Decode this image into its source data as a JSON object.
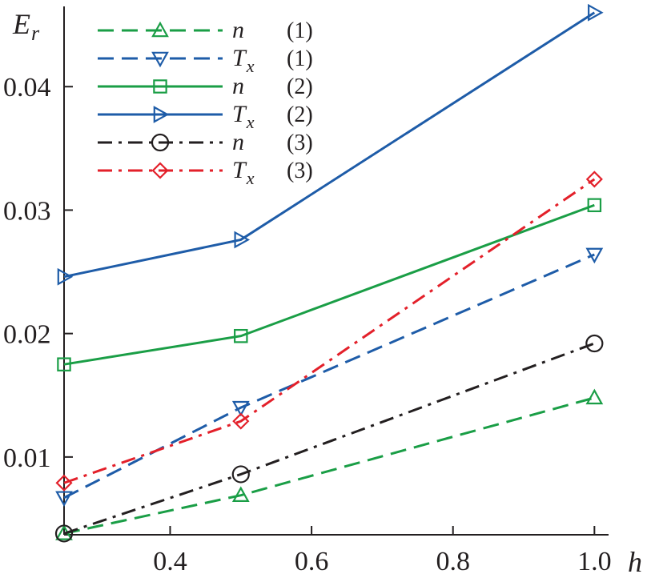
{
  "chart_data": {
    "type": "line",
    "xlabel": "h",
    "ylabel": {
      "base": "E",
      "sub": "r"
    },
    "xlim": [
      0.25,
      1.02
    ],
    "ylim": [
      0.0037,
      0.0465
    ],
    "xticks": [
      0.4,
      0.6,
      0.8,
      1.0
    ],
    "xtick_labels": [
      "0.4",
      "0.6",
      "0.8",
      "1.0"
    ],
    "yticks": [
      0.01,
      0.02,
      0.03,
      0.04
    ],
    "ytick_labels": [
      "0.01",
      "0.02",
      "0.03",
      "0.04"
    ],
    "legend_position": "top-left",
    "series": [
      {
        "name": "n",
        "name_sub": "",
        "group": "(1)",
        "x": [
          0.25,
          0.5,
          1.0
        ],
        "y": [
          0.0038,
          0.0069,
          0.0148
        ],
        "color": "#1a9e46",
        "dash": "dashed",
        "marker": "triangle-up"
      },
      {
        "name": "T",
        "name_sub": "x",
        "group": "(1)",
        "x": [
          0.25,
          0.5,
          1.0
        ],
        "y": [
          0.0067,
          0.014,
          0.0264
        ],
        "color": "#1e5ca8",
        "dash": "dashed",
        "marker": "triangle-down"
      },
      {
        "name": "n",
        "name_sub": "",
        "group": "(2)",
        "x": [
          0.25,
          0.5,
          1.0
        ],
        "y": [
          0.0175,
          0.0198,
          0.0304
        ],
        "color": "#1a9e46",
        "dash": "solid",
        "marker": "square"
      },
      {
        "name": "T",
        "name_sub": "x",
        "group": "(2)",
        "x": [
          0.25,
          0.5,
          1.0
        ],
        "y": [
          0.0246,
          0.0276,
          0.046
        ],
        "color": "#1e5ca8",
        "dash": "solid",
        "marker": "triangle-right"
      },
      {
        "name": "n",
        "name_sub": "",
        "group": "(3)",
        "x": [
          0.25,
          0.5,
          1.0
        ],
        "y": [
          0.0038,
          0.0086,
          0.0192
        ],
        "color": "#231f20",
        "dash": "dashdot",
        "marker": "circle"
      },
      {
        "name": "T",
        "name_sub": "x",
        "group": "(3)",
        "x": [
          0.25,
          0.5,
          1.0
        ],
        "y": [
          0.0079,
          0.0129,
          0.0325
        ],
        "color": "#e3202a",
        "dash": "dashdot",
        "marker": "diamond"
      }
    ]
  }
}
